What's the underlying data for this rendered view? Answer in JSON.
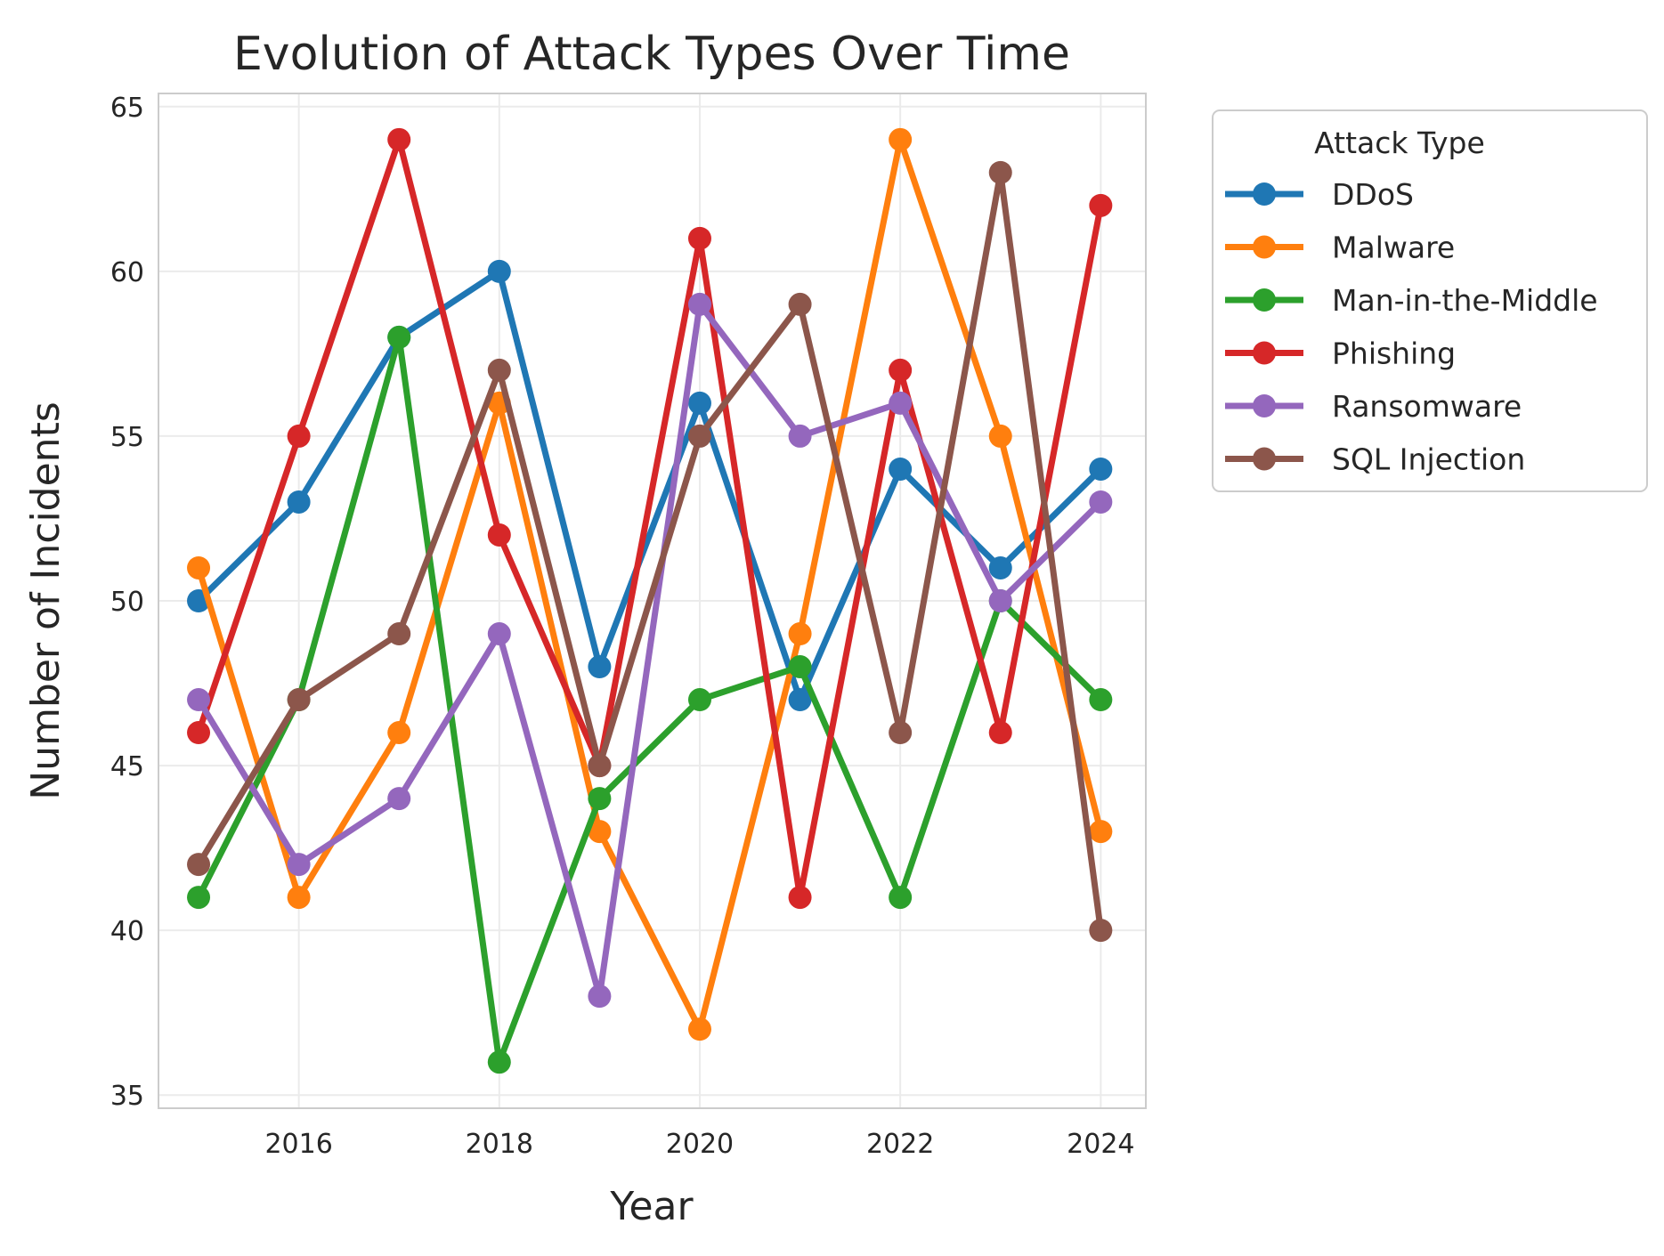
{
  "chart_data": {
    "type": "line",
    "title": "Evolution of Attack Types Over Time",
    "xlabel": "Year",
    "ylabel": "Number of Incidents",
    "x": [
      2015,
      2016,
      2017,
      2018,
      2019,
      2020,
      2021,
      2022,
      2023,
      2024
    ],
    "x_ticks": [
      2016,
      2018,
      2020,
      2022,
      2024
    ],
    "y_ticks": [
      35,
      40,
      45,
      50,
      55,
      60,
      65
    ],
    "xlim": [
      2014.6,
      2024.45
    ],
    "ylim": [
      34.6,
      65.4
    ],
    "grid": true,
    "legend": {
      "title": "Attack Type",
      "placement": "outside-right-top"
    },
    "series": [
      {
        "name": "DDoS",
        "color": "#1f77b4",
        "values": [
          50,
          53,
          58,
          60,
          48,
          56,
          47,
          54,
          51,
          54
        ]
      },
      {
        "name": "Malware",
        "color": "#ff7f0e",
        "values": [
          51,
          41,
          46,
          56,
          43,
          37,
          49,
          64,
          55,
          43
        ]
      },
      {
        "name": "Man-in-the-Middle",
        "color": "#2ca02c",
        "values": [
          41,
          47,
          58,
          36,
          44,
          47,
          48,
          41,
          50,
          47
        ]
      },
      {
        "name": "Phishing",
        "color": "#d62728",
        "values": [
          46,
          55,
          64,
          52,
          45,
          61,
          41,
          57,
          46,
          62
        ]
      },
      {
        "name": "Ransomware",
        "color": "#9467bd",
        "values": [
          47,
          42,
          44,
          49,
          38,
          59,
          55,
          56,
          50,
          53
        ]
      },
      {
        "name": "SQL Injection",
        "color": "#8c564b",
        "values": [
          42,
          47,
          49,
          57,
          45,
          55,
          59,
          46,
          63,
          40
        ]
      }
    ]
  }
}
